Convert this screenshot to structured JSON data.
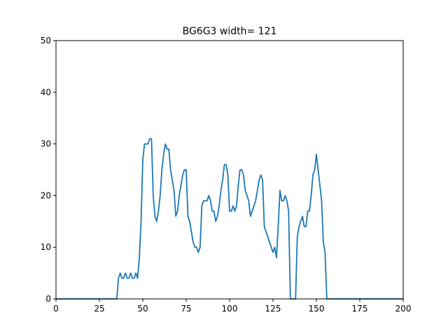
{
  "chart_data": {
    "type": "line",
    "title": "BG6G3 width= 121",
    "xlabel": "",
    "ylabel": "",
    "xlim": [
      0,
      200
    ],
    "ylim": [
      0,
      50
    ],
    "xticks": [
      0,
      25,
      50,
      75,
      100,
      125,
      150,
      175,
      200
    ],
    "yticks": [
      0,
      10,
      20,
      30,
      40,
      50
    ],
    "grid": false,
    "series": [
      {
        "color": "#1f77b4",
        "x": [
          0,
          35,
          36,
          37,
          38,
          39,
          40,
          41,
          42,
          43,
          44,
          45,
          46,
          47,
          48,
          49,
          50,
          51,
          52,
          53,
          54,
          55,
          56,
          57,
          58,
          59,
          60,
          61,
          62,
          63,
          64,
          65,
          66,
          67,
          68,
          69,
          70,
          71,
          72,
          73,
          74,
          75,
          76,
          77,
          78,
          79,
          80,
          81,
          82,
          83,
          84,
          85,
          86,
          87,
          88,
          89,
          90,
          91,
          92,
          93,
          94,
          95,
          96,
          97,
          98,
          99,
          100,
          101,
          102,
          103,
          104,
          105,
          106,
          107,
          108,
          109,
          110,
          111,
          112,
          113,
          114,
          115,
          116,
          117,
          118,
          119,
          120,
          121,
          122,
          123,
          124,
          125,
          126,
          127,
          128,
          129,
          130,
          131,
          132,
          133,
          134,
          135,
          136,
          137,
          138,
          139,
          140,
          141,
          142,
          143,
          144,
          145,
          146,
          147,
          148,
          149,
          150,
          151,
          152,
          153,
          154,
          155,
          156,
          200
        ],
        "y": [
          0,
          0,
          4,
          5,
          4,
          4,
          5,
          4,
          4,
          5,
          4,
          4,
          5,
          4,
          8,
          15,
          27,
          30,
          30,
          30,
          31,
          31,
          20,
          16,
          15,
          17,
          20,
          25,
          28,
          30,
          29,
          29,
          25,
          23,
          21,
          16,
          17,
          20,
          22,
          24,
          25,
          25,
          16,
          15,
          13,
          11,
          10,
          10,
          9,
          10,
          18,
          19,
          19,
          19,
          20,
          19,
          17,
          17,
          15,
          16,
          18,
          21,
          23,
          26,
          26,
          24,
          17,
          17,
          18,
          17,
          18,
          22,
          25,
          25,
          24,
          21,
          20,
          19,
          16,
          17,
          18,
          19,
          21,
          23,
          24,
          23,
          14,
          13,
          12,
          11,
          10,
          9,
          10,
          8,
          14,
          21,
          19,
          19,
          20,
          19,
          17,
          0,
          0,
          0,
          0,
          12,
          14,
          15,
          16,
          14,
          14,
          17,
          17,
          20,
          24,
          25,
          28,
          25,
          22,
          19,
          11,
          9,
          0,
          0
        ]
      }
    ]
  }
}
